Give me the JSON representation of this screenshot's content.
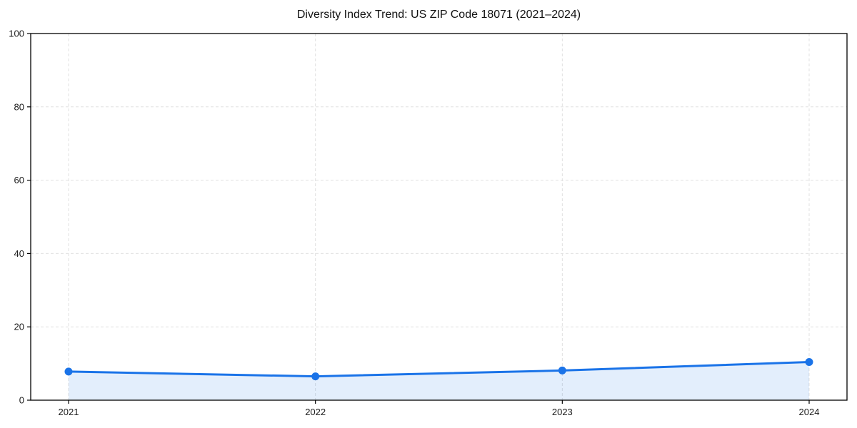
{
  "chart": {
    "title": "Diversity Index Trend: US ZIP Code 18071 (2021–2024)"
  },
  "chart_data": {
    "type": "line",
    "title": "Diversity Index Trend: US ZIP Code 18071 (2021–2024)",
    "x": [
      "2021",
      "2022",
      "2023",
      "2024"
    ],
    "values": [
      7.8,
      6.5,
      8.1,
      10.4
    ],
    "series_name": "Diversity Index",
    "xlabel": "",
    "ylabel": "",
    "ylim": [
      0,
      100
    ],
    "yticks": [
      0,
      20,
      40,
      60,
      80,
      100
    ],
    "grid": true,
    "grid_style": "dashed",
    "legend_position": "none",
    "area_fill": true,
    "marker": "circle",
    "colors": {
      "line": "#1a73e8",
      "fill": "#1a73e8",
      "grid": "#e0e0e0",
      "spine": "#000000",
      "text": "#1a1a1a",
      "background": "#ffffff"
    },
    "fill_opacity": 0.12
  }
}
